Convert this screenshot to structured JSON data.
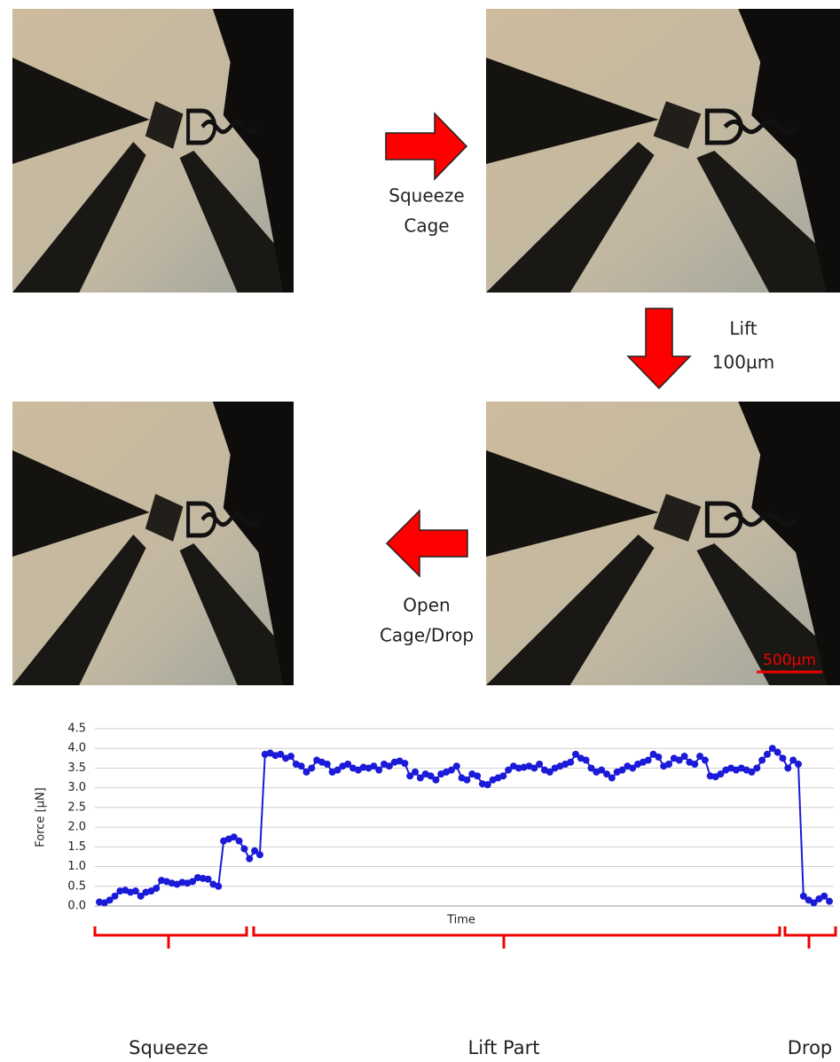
{
  "steps": [
    {
      "lines": [
        "Squeeze",
        "Cage"
      ]
    },
    {
      "lines": [
        "Lift",
        "100µm"
      ]
    },
    {
      "lines": [
        "Open",
        "Cage/Drop"
      ]
    }
  ],
  "scale_bar": "500µm",
  "chart_data": {
    "type": "line",
    "ylabel": "Force [µN]",
    "xlabel": "Time",
    "color": "#1a1ad8",
    "grid": true,
    "ylim": [
      0,
      4.5
    ],
    "yticks": [
      {
        "value": 0,
        "label": "0.0"
      },
      {
        "value": 0.5,
        "label": "0.5"
      },
      {
        "value": 1,
        "label": "1.0"
      },
      {
        "value": 1.5,
        "label": "1.5"
      },
      {
        "value": 2,
        "label": "2.0"
      },
      {
        "value": 2.5,
        "label": "2.5"
      },
      {
        "value": 3,
        "label": "3.0"
      },
      {
        "value": 3.5,
        "label": "3.5"
      },
      {
        "value": 4,
        "label": "4.0"
      },
      {
        "value": 4.5,
        "label": "4.5"
      }
    ],
    "values": [
      0.1,
      0.08,
      0.15,
      0.25,
      0.38,
      0.4,
      0.35,
      0.38,
      0.25,
      0.35,
      0.38,
      0.45,
      0.65,
      0.62,
      0.58,
      0.55,
      0.6,
      0.58,
      0.62,
      0.72,
      0.7,
      0.68,
      0.55,
      0.5,
      1.65,
      1.7,
      1.75,
      1.65,
      1.45,
      1.2,
      1.4,
      1.3,
      3.85,
      3.88,
      3.82,
      3.85,
      3.75,
      3.8,
      3.6,
      3.55,
      3.4,
      3.5,
      3.7,
      3.65,
      3.6,
      3.4,
      3.45,
      3.55,
      3.6,
      3.5,
      3.45,
      3.52,
      3.5,
      3.55,
      3.45,
      3.6,
      3.55,
      3.65,
      3.68,
      3.62,
      3.3,
      3.4,
      3.25,
      3.35,
      3.3,
      3.2,
      3.35,
      3.4,
      3.45,
      3.55,
      3.25,
      3.2,
      3.35,
      3.3,
      3.1,
      3.08,
      3.2,
      3.25,
      3.3,
      3.45,
      3.55,
      3.5,
      3.52,
      3.55,
      3.5,
      3.6,
      3.45,
      3.4,
      3.5,
      3.55,
      3.6,
      3.65,
      3.85,
      3.75,
      3.7,
      3.5,
      3.4,
      3.45,
      3.35,
      3.25,
      3.4,
      3.45,
      3.55,
      3.5,
      3.6,
      3.65,
      3.7,
      3.85,
      3.78,
      3.55,
      3.6,
      3.75,
      3.7,
      3.8,
      3.65,
      3.6,
      3.8,
      3.7,
      3.3,
      3.28,
      3.35,
      3.45,
      3.5,
      3.45,
      3.5,
      3.45,
      3.4,
      3.5,
      3.7,
      3.85,
      4.0,
      3.9,
      3.75,
      3.5,
      3.7,
      3.6,
      0.25,
      0.15,
      0.08,
      0.18,
      0.25,
      0.12
    ],
    "phases": [
      "Squeeze",
      "Lift Part",
      "Drop"
    ]
  }
}
